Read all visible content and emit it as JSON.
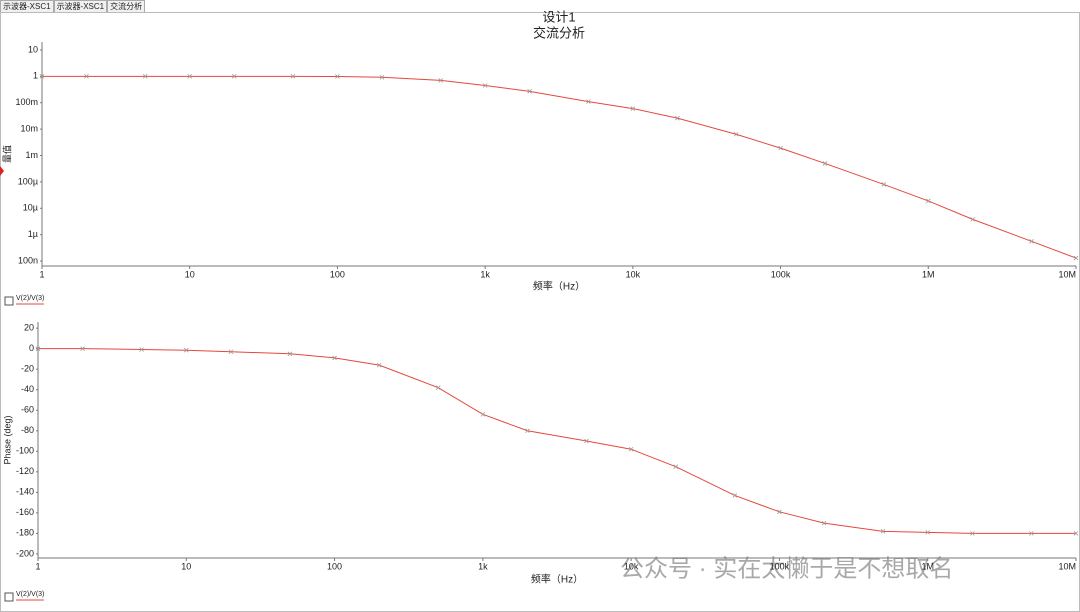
{
  "tabs": [
    "示波器-XSC1",
    "示波器-XSC1",
    "交流分析"
  ],
  "watermark": "公众号 · 实在太懒于是不想取名",
  "chart_data": [
    {
      "type": "line",
      "title": "设计1",
      "subtitle": "交流分析",
      "x_label": "频率（Hz）",
      "y_label": "量值",
      "xscale": "log",
      "yscale": "log",
      "grid": false,
      "x": [
        1,
        2,
        5,
        10,
        20,
        50,
        100,
        200,
        500,
        1000,
        2000,
        5000,
        10000,
        20000,
        50000,
        100000,
        200000,
        500000,
        1000000,
        2000000,
        5000000,
        10000000
      ],
      "series": [
        {
          "name": "V(2)/V(3)",
          "color": "#e5483d",
          "values": [
            1,
            1,
            1,
            1,
            1,
            1,
            0.99,
            0.92,
            0.7,
            0.45,
            0.27,
            0.11,
            0.06,
            0.026,
            0.0064,
            0.0019,
            0.0005,
            8e-05,
            1.9e-05,
            3.8e-06,
            5.6e-07,
            1.3e-07
          ]
        }
      ],
      "xlim": [
        1,
        10000000
      ],
      "xticks": [
        1,
        10,
        100,
        {
          "value": 1000,
          "label": "1k"
        },
        {
          "value": 10000,
          "label": "10k"
        },
        {
          "value": 100000,
          "label": "100k"
        },
        {
          "value": 1000000,
          "label": "1M"
        },
        {
          "value": 10000000,
          "label": "10M"
        }
      ],
      "ylim": [
        6.5e-08,
        20
      ],
      "yticks": [
        10,
        1,
        {
          "value": 0.1,
          "label": "100m"
        },
        {
          "value": 0.01,
          "label": "10m"
        },
        {
          "value": 0.001,
          "label": "1m"
        },
        {
          "value": 0.0001,
          "label": "100µ"
        },
        {
          "value": 1e-05,
          "label": "10µ"
        },
        {
          "value": 1e-06,
          "label": "1µ"
        },
        {
          "value": 1e-07,
          "label": "100n"
        }
      ]
    },
    {
      "type": "line",
      "x_label": "频率（Hz）",
      "y_label": "Phase (deg)",
      "xscale": "log",
      "yscale": "linear",
      "grid": false,
      "x": [
        1,
        2,
        5,
        10,
        20,
        50,
        100,
        200,
        500,
        1000,
        2000,
        5000,
        10000,
        20000,
        50000,
        100000,
        200000,
        500000,
        1000000,
        2000000,
        5000000,
        10000000
      ],
      "series": [
        {
          "name": "V(2)/V(3)",
          "color": "#e5483d",
          "values": [
            0,
            0,
            -0.8,
            -1.5,
            -3,
            -5,
            -9,
            -16,
            -38,
            -64,
            -80,
            -90,
            -98,
            -115,
            -143,
            -159,
            -170,
            -178,
            -179,
            -180,
            -180,
            -180
          ]
        }
      ],
      "xlim": [
        1,
        10000000
      ],
      "xticks": [
        1,
        10,
        100,
        {
          "value": 1000,
          "label": "1k"
        },
        {
          "value": 10000,
          "label": "10k"
        },
        {
          "value": 100000,
          "label": "100k"
        },
        {
          "value": 1000000,
          "label": "1M"
        },
        {
          "value": 10000000,
          "label": "10M"
        }
      ],
      "ylim": [
        -204,
        26
      ],
      "yticks": [
        20,
        0,
        -20,
        -40,
        -60,
        -80,
        -100,
        -120,
        -140,
        -160,
        -180,
        -200
      ]
    }
  ]
}
